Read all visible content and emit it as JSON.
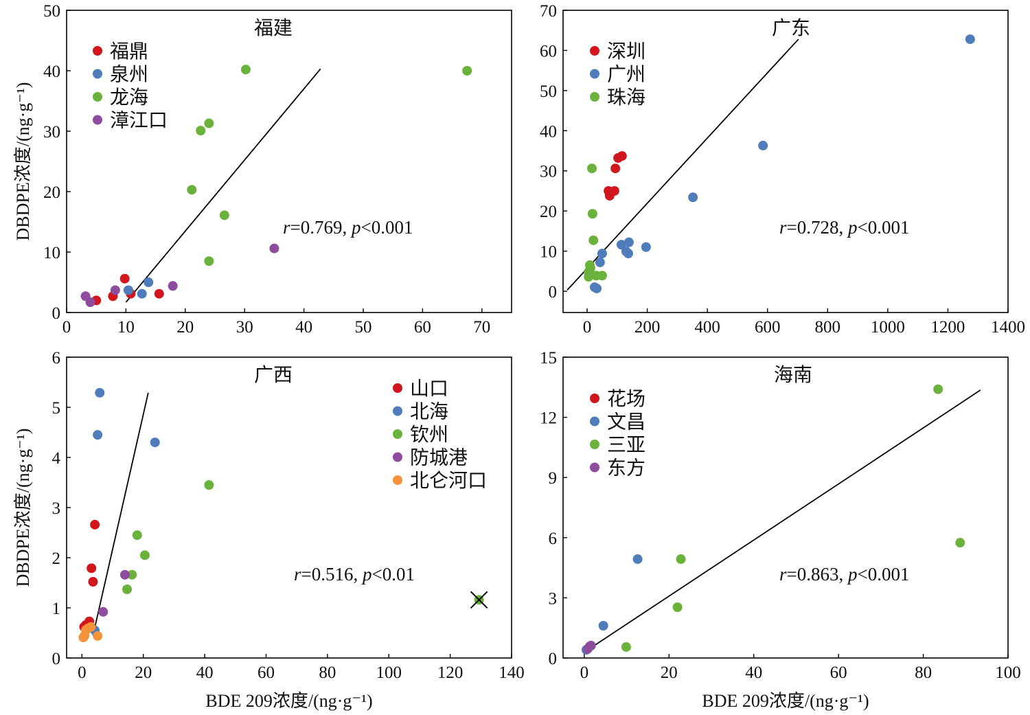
{
  "chart_data": [
    {
      "type": "scatter",
      "title": "福建",
      "xlabel": "",
      "ylabel": "DBDPE浓度/(ng·g⁻¹)",
      "xlim": [
        0,
        75
      ],
      "ylim": [
        0,
        50
      ],
      "xticks": [
        0,
        10,
        20,
        30,
        40,
        50,
        60,
        70
      ],
      "yticks": [
        0,
        10,
        20,
        30,
        40,
        50
      ],
      "grid": false,
      "legend": "top-left",
      "series": [
        {
          "name": "福鼎",
          "color": "#d2161e",
          "points": [
            [
              5.0,
              2.0
            ],
            [
              7.8,
              2.7
            ],
            [
              9.8,
              5.6
            ],
            [
              10.8,
              3.1
            ],
            [
              15.6,
              3.1
            ]
          ]
        },
        {
          "name": "泉州",
          "color": "#4f7cba",
          "points": [
            [
              10.4,
              3.7
            ],
            [
              12.7,
              3.1
            ],
            [
              13.8,
              5.0
            ]
          ]
        },
        {
          "name": "龙海",
          "color": "#6bb23c",
          "points": [
            [
              30.2,
              40.2
            ],
            [
              67.5,
              40.0
            ],
            [
              24.0,
              31.3
            ],
            [
              22.6,
              30.1
            ],
            [
              21.1,
              20.3
            ],
            [
              26.6,
              16.1
            ],
            [
              24.0,
              8.5
            ]
          ]
        },
        {
          "name": "漳江口",
          "color": "#8e4c9e",
          "points": [
            [
              3.2,
              2.7
            ],
            [
              4.0,
              1.7
            ],
            [
              8.2,
              3.7
            ],
            [
              17.9,
              4.4
            ],
            [
              35.0,
              10.6
            ]
          ]
        }
      ],
      "fit_line": {
        "x": [
          10.0,
          42.8
        ],
        "y": [
          1.7,
          40.3
        ]
      },
      "crossed_points": [],
      "annotation": [
        {
          "text": "r",
          "italic": true
        },
        {
          "text": "=0.769, ",
          "italic": false
        },
        {
          "text": "p",
          "italic": true
        },
        {
          "text": "<0.001",
          "italic": false
        }
      ]
    },
    {
      "type": "scatter",
      "title": "广东",
      "xlabel": "",
      "ylabel": "",
      "xlim": [
        -80,
        1400
      ],
      "ylim": [
        -5.3,
        70
      ],
      "xticks": [
        0,
        200,
        400,
        600,
        800,
        1000,
        1200,
        1400
      ],
      "yticks": [
        0,
        10,
        20,
        30,
        40,
        50,
        60,
        70
      ],
      "grid": false,
      "legend": "top-left",
      "series": [
        {
          "name": "深圳",
          "color": "#d2161e",
          "points": [
            [
              116,
              33.7
            ],
            [
              103,
              33.2
            ],
            [
              94,
              30.6
            ],
            [
              71,
              25.0
            ],
            [
              91,
              25.0
            ],
            [
              75,
              23.8
            ]
          ]
        },
        {
          "name": "广州",
          "color": "#4f7cba",
          "points": [
            [
              1274,
              62.8
            ],
            [
              585,
              36.3
            ],
            [
              352,
              23.4
            ],
            [
              196,
              11.0
            ],
            [
              114,
              11.6
            ],
            [
              139,
              12.2
            ],
            [
              130,
              9.9
            ],
            [
              137,
              9.4
            ],
            [
              50,
              9.4
            ],
            [
              43,
              7.2
            ],
            [
              25,
              1.0
            ],
            [
              32,
              0.7
            ]
          ]
        },
        {
          "name": "珠海",
          "color": "#6bb23c",
          "points": [
            [
              16,
              30.6
            ],
            [
              18,
              19.3
            ],
            [
              21,
              12.7
            ],
            [
              9,
              6.5
            ],
            [
              11,
              5.8
            ],
            [
              5,
              3.6
            ],
            [
              30,
              3.9
            ],
            [
              50,
              3.9
            ],
            [
              5,
              4.8
            ]
          ]
        }
      ],
      "fit_line": {
        "x": [
          -66,
          703
        ],
        "y": [
          0.3,
          62.8
        ]
      },
      "crossed_points": [],
      "annotation": [
        {
          "text": "r",
          "italic": true
        },
        {
          "text": "=0.728, ",
          "italic": false
        },
        {
          "text": "p",
          "italic": true
        },
        {
          "text": "<0.001",
          "italic": false
        }
      ]
    },
    {
      "type": "scatter",
      "title": "广西",
      "xlabel": "BDE 209浓度/(ng·g⁻¹)",
      "ylabel": "DBDPE浓度/(ng·g⁻¹)",
      "xlim": [
        -5,
        140
      ],
      "ylim": [
        0,
        6
      ],
      "xticks": [
        0,
        20,
        40,
        60,
        80,
        100,
        120,
        140
      ],
      "yticks": [
        0,
        1,
        2,
        3,
        4,
        5,
        6
      ],
      "grid": false,
      "legend": "top-right",
      "series": [
        {
          "name": "山口",
          "color": "#d2161e",
          "points": [
            [
              4.2,
              2.66
            ],
            [
              3.1,
              1.79
            ],
            [
              3.6,
              1.52
            ],
            [
              2.4,
              0.73
            ],
            [
              1.3,
              0.66
            ],
            [
              0.7,
              0.62
            ]
          ]
        },
        {
          "name": "北海",
          "color": "#4f7cba",
          "points": [
            [
              5.8,
              5.29
            ],
            [
              5.1,
              4.45
            ],
            [
              23.8,
              4.3
            ],
            [
              4.2,
              0.55
            ]
          ]
        },
        {
          "name": "钦州",
          "color": "#6bb23c",
          "points": [
            [
              41.4,
              3.45
            ],
            [
              18.0,
              2.45
            ],
            [
              20.5,
              2.05
            ],
            [
              16.3,
              1.66
            ],
            [
              14.7,
              1.37
            ],
            [
              129.4,
              1.16
            ]
          ]
        },
        {
          "name": "防城港",
          "color": "#8e4c9e",
          "points": [
            [
              14.0,
              1.66
            ],
            [
              6.9,
              0.92
            ]
          ]
        },
        {
          "name": "北仑河口",
          "color": "#f4943a",
          "points": [
            [
              0.9,
              0.45
            ],
            [
              0.45,
              0.41
            ],
            [
              1.3,
              0.56
            ],
            [
              2.0,
              0.59
            ],
            [
              2.9,
              0.62
            ],
            [
              5.1,
              0.44
            ]
          ]
        }
      ],
      "fit_line": {
        "x": [
          3.6,
          21.6
        ],
        "y": [
          0.45,
          5.29
        ]
      },
      "crossed_points": [
        [
          129.4,
          1.16
        ]
      ],
      "annotation": [
        {
          "text": "r",
          "italic": true
        },
        {
          "text": "=0.516, ",
          "italic": false
        },
        {
          "text": "p",
          "italic": true
        },
        {
          "text": "<0.01",
          "italic": false
        }
      ]
    },
    {
      "type": "scatter",
      "title": "海南",
      "xlabel": "BDE 209浓度/(ng·g⁻¹)",
      "ylabel": "",
      "xlim": [
        -5,
        100
      ],
      "ylim": [
        0,
        15
      ],
      "xticks": [
        0,
        20,
        40,
        60,
        80,
        100
      ],
      "yticks": [
        0,
        3,
        6,
        9,
        12,
        15
      ],
      "grid": false,
      "legend": "top-left",
      "series": [
        {
          "name": "花场",
          "color": "#d2161e",
          "points": []
        },
        {
          "name": "文昌",
          "color": "#4f7cba",
          "points": [
            [
              12.6,
              4.93
            ],
            [
              4.5,
              1.61
            ],
            [
              0.5,
              0.41
            ]
          ]
        },
        {
          "name": "三亚",
          "color": "#6bb23c",
          "points": [
            [
              83.5,
              13.4
            ],
            [
              88.7,
              5.75
            ],
            [
              22.8,
              4.93
            ],
            [
              22.0,
              2.53
            ],
            [
              9.9,
              0.55
            ]
          ]
        },
        {
          "name": "东方",
          "color": "#8e4c9e",
          "points": [
            [
              1.3,
              0.58
            ],
            [
              0.8,
              0.45
            ],
            [
              1.6,
              0.62
            ]
          ]
        }
      ],
      "fit_line": {
        "x": [
          0.65,
          93.5
        ],
        "y": [
          0.38,
          13.36
        ]
      },
      "crossed_points": [],
      "annotation": [
        {
          "text": "r",
          "italic": true
        },
        {
          "text": "=0.863, ",
          "italic": false
        },
        {
          "text": "p",
          "italic": true
        },
        {
          "text": "<0.001",
          "italic": false
        }
      ]
    }
  ]
}
